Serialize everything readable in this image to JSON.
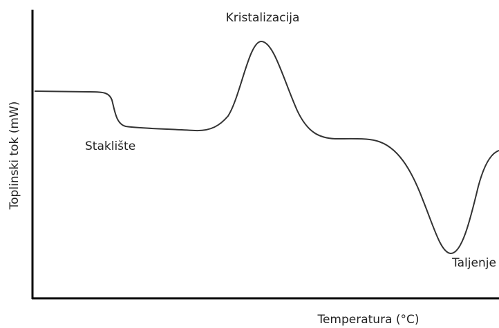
{
  "axes": {
    "x_label": "Temperatura (°C)",
    "y_label": "Toplinski tok (mW)"
  },
  "annotations": {
    "crystallization": "Kristalizacija",
    "glass_transition": "Staklište",
    "melting": "Taljenje"
  }
}
